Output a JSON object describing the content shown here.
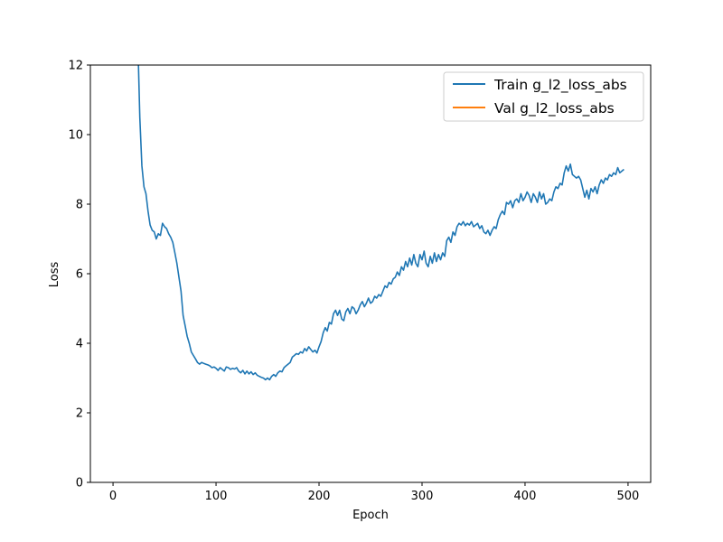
{
  "chart_data": {
    "type": "line",
    "title": "",
    "xlabel": "Epoch",
    "ylabel": "Loss",
    "xlim": [
      -22,
      522
    ],
    "ylim": [
      0,
      12
    ],
    "xticks": [
      0,
      100,
      200,
      300,
      400,
      500
    ],
    "yticks": [
      0,
      2,
      4,
      6,
      8,
      10,
      12
    ],
    "grid": false,
    "legend_position": "upper right",
    "series": [
      {
        "name": "Train g_l2_loss_abs",
        "color": "#1f77b4",
        "points": [
          [
            24,
            12.8
          ],
          [
            26,
            10.5
          ],
          [
            28,
            9.1
          ],
          [
            30,
            8.5
          ],
          [
            32,
            8.3
          ],
          [
            34,
            7.8
          ],
          [
            36,
            7.4
          ],
          [
            38,
            7.25
          ],
          [
            40,
            7.2
          ],
          [
            42,
            7.0
          ],
          [
            44,
            7.15
          ],
          [
            46,
            7.1
          ],
          [
            48,
            7.45
          ],
          [
            50,
            7.35
          ],
          [
            52,
            7.3
          ],
          [
            54,
            7.15
          ],
          [
            56,
            7.05
          ],
          [
            58,
            6.9
          ],
          [
            60,
            6.6
          ],
          [
            62,
            6.3
          ],
          [
            64,
            5.9
          ],
          [
            66,
            5.5
          ],
          [
            68,
            4.8
          ],
          [
            70,
            4.5
          ],
          [
            72,
            4.2
          ],
          [
            74,
            4.0
          ],
          [
            76,
            3.75
          ],
          [
            78,
            3.65
          ],
          [
            80,
            3.55
          ],
          [
            82,
            3.45
          ],
          [
            84,
            3.4
          ],
          [
            86,
            3.45
          ],
          [
            88,
            3.42
          ],
          [
            90,
            3.4
          ],
          [
            92,
            3.38
          ],
          [
            94,
            3.35
          ],
          [
            96,
            3.3
          ],
          [
            98,
            3.32
          ],
          [
            100,
            3.28
          ],
          [
            102,
            3.22
          ],
          [
            104,
            3.3
          ],
          [
            106,
            3.25
          ],
          [
            108,
            3.2
          ],
          [
            110,
            3.32
          ],
          [
            112,
            3.3
          ],
          [
            114,
            3.25
          ],
          [
            116,
            3.28
          ],
          [
            118,
            3.26
          ],
          [
            120,
            3.3
          ],
          [
            122,
            3.2
          ],
          [
            124,
            3.15
          ],
          [
            126,
            3.22
          ],
          [
            128,
            3.12
          ],
          [
            130,
            3.2
          ],
          [
            132,
            3.12
          ],
          [
            134,
            3.18
          ],
          [
            136,
            3.1
          ],
          [
            138,
            3.15
          ],
          [
            140,
            3.08
          ],
          [
            142,
            3.05
          ],
          [
            144,
            3.02
          ],
          [
            146,
            3.0
          ],
          [
            148,
            2.95
          ],
          [
            150,
            3.0
          ],
          [
            152,
            2.95
          ],
          [
            154,
            3.05
          ],
          [
            156,
            3.1
          ],
          [
            158,
            3.05
          ],
          [
            160,
            3.15
          ],
          [
            162,
            3.2
          ],
          [
            164,
            3.18
          ],
          [
            166,
            3.3
          ],
          [
            168,
            3.35
          ],
          [
            170,
            3.4
          ],
          [
            172,
            3.45
          ],
          [
            174,
            3.6
          ],
          [
            176,
            3.65
          ],
          [
            178,
            3.7
          ],
          [
            180,
            3.68
          ],
          [
            182,
            3.75
          ],
          [
            184,
            3.72
          ],
          [
            186,
            3.85
          ],
          [
            188,
            3.78
          ],
          [
            190,
            3.9
          ],
          [
            192,
            3.82
          ],
          [
            194,
            3.75
          ],
          [
            196,
            3.8
          ],
          [
            198,
            3.72
          ],
          [
            200,
            3.9
          ],
          [
            202,
            4.05
          ],
          [
            204,
            4.3
          ],
          [
            206,
            4.45
          ],
          [
            208,
            4.35
          ],
          [
            210,
            4.6
          ],
          [
            212,
            4.55
          ],
          [
            214,
            4.85
          ],
          [
            216,
            4.95
          ],
          [
            218,
            4.8
          ],
          [
            220,
            4.95
          ],
          [
            222,
            4.7
          ],
          [
            224,
            4.65
          ],
          [
            226,
            4.9
          ],
          [
            228,
            5.0
          ],
          [
            230,
            4.85
          ],
          [
            232,
            5.05
          ],
          [
            234,
            5.0
          ],
          [
            236,
            4.85
          ],
          [
            238,
            4.95
          ],
          [
            240,
            5.1
          ],
          [
            242,
            5.2
          ],
          [
            244,
            5.05
          ],
          [
            246,
            5.15
          ],
          [
            248,
            5.3
          ],
          [
            250,
            5.15
          ],
          [
            252,
            5.2
          ],
          [
            254,
            5.35
          ],
          [
            256,
            5.3
          ],
          [
            258,
            5.4
          ],
          [
            260,
            5.35
          ],
          [
            262,
            5.5
          ],
          [
            264,
            5.65
          ],
          [
            266,
            5.6
          ],
          [
            268,
            5.75
          ],
          [
            270,
            5.7
          ],
          [
            272,
            5.85
          ],
          [
            274,
            5.9
          ],
          [
            276,
            6.05
          ],
          [
            278,
            5.95
          ],
          [
            280,
            6.2
          ],
          [
            282,
            6.1
          ],
          [
            284,
            6.35
          ],
          [
            286,
            6.2
          ],
          [
            288,
            6.45
          ],
          [
            290,
            6.25
          ],
          [
            292,
            6.55
          ],
          [
            294,
            6.3
          ],
          [
            296,
            6.2
          ],
          [
            298,
            6.55
          ],
          [
            300,
            6.4
          ],
          [
            302,
            6.65
          ],
          [
            304,
            6.3
          ],
          [
            306,
            6.2
          ],
          [
            308,
            6.5
          ],
          [
            310,
            6.3
          ],
          [
            312,
            6.6
          ],
          [
            314,
            6.35
          ],
          [
            316,
            6.55
          ],
          [
            318,
            6.4
          ],
          [
            320,
            6.6
          ],
          [
            322,
            6.5
          ],
          [
            324,
            6.95
          ],
          [
            326,
            7.05
          ],
          [
            328,
            6.9
          ],
          [
            330,
            7.2
          ],
          [
            332,
            7.1
          ],
          [
            334,
            7.35
          ],
          [
            336,
            7.45
          ],
          [
            338,
            7.4
          ],
          [
            340,
            7.5
          ],
          [
            342,
            7.38
          ],
          [
            344,
            7.45
          ],
          [
            346,
            7.4
          ],
          [
            348,
            7.5
          ],
          [
            350,
            7.35
          ],
          [
            352,
            7.4
          ],
          [
            354,
            7.45
          ],
          [
            356,
            7.3
          ],
          [
            358,
            7.38
          ],
          [
            360,
            7.2
          ],
          [
            362,
            7.15
          ],
          [
            364,
            7.25
          ],
          [
            366,
            7.1
          ],
          [
            368,
            7.25
          ],
          [
            370,
            7.35
          ],
          [
            372,
            7.3
          ],
          [
            374,
            7.55
          ],
          [
            376,
            7.7
          ],
          [
            378,
            7.8
          ],
          [
            380,
            7.7
          ],
          [
            382,
            8.05
          ],
          [
            384,
            8.0
          ],
          [
            386,
            8.1
          ],
          [
            388,
            7.9
          ],
          [
            390,
            8.1
          ],
          [
            392,
            8.15
          ],
          [
            394,
            8.05
          ],
          [
            396,
            8.3
          ],
          [
            398,
            8.1
          ],
          [
            400,
            8.2
          ],
          [
            402,
            8.35
          ],
          [
            404,
            8.25
          ],
          [
            406,
            8.05
          ],
          [
            408,
            8.3
          ],
          [
            410,
            8.2
          ],
          [
            412,
            8.05
          ],
          [
            414,
            8.35
          ],
          [
            416,
            8.15
          ],
          [
            418,
            8.3
          ],
          [
            420,
            8.0
          ],
          [
            422,
            8.05
          ],
          [
            424,
            8.15
          ],
          [
            426,
            8.1
          ],
          [
            428,
            8.35
          ],
          [
            430,
            8.5
          ],
          [
            432,
            8.45
          ],
          [
            434,
            8.6
          ],
          [
            436,
            8.55
          ],
          [
            438,
            8.9
          ],
          [
            440,
            9.1
          ],
          [
            442,
            8.95
          ],
          [
            444,
            9.15
          ],
          [
            446,
            8.85
          ],
          [
            448,
            8.8
          ],
          [
            450,
            8.75
          ],
          [
            452,
            8.8
          ],
          [
            454,
            8.7
          ],
          [
            456,
            8.45
          ],
          [
            458,
            8.2
          ],
          [
            460,
            8.4
          ],
          [
            462,
            8.15
          ],
          [
            464,
            8.45
          ],
          [
            466,
            8.35
          ],
          [
            468,
            8.5
          ],
          [
            470,
            8.3
          ],
          [
            472,
            8.55
          ],
          [
            474,
            8.7
          ],
          [
            476,
            8.6
          ],
          [
            478,
            8.75
          ],
          [
            480,
            8.7
          ],
          [
            482,
            8.85
          ],
          [
            484,
            8.8
          ],
          [
            486,
            8.9
          ],
          [
            488,
            8.85
          ],
          [
            490,
            9.05
          ],
          [
            492,
            8.9
          ],
          [
            494,
            8.95
          ],
          [
            496,
            9.0
          ]
        ]
      },
      {
        "name": "Val g_l2_loss_abs",
        "color": "#ff7f0e",
        "points": []
      }
    ]
  }
}
